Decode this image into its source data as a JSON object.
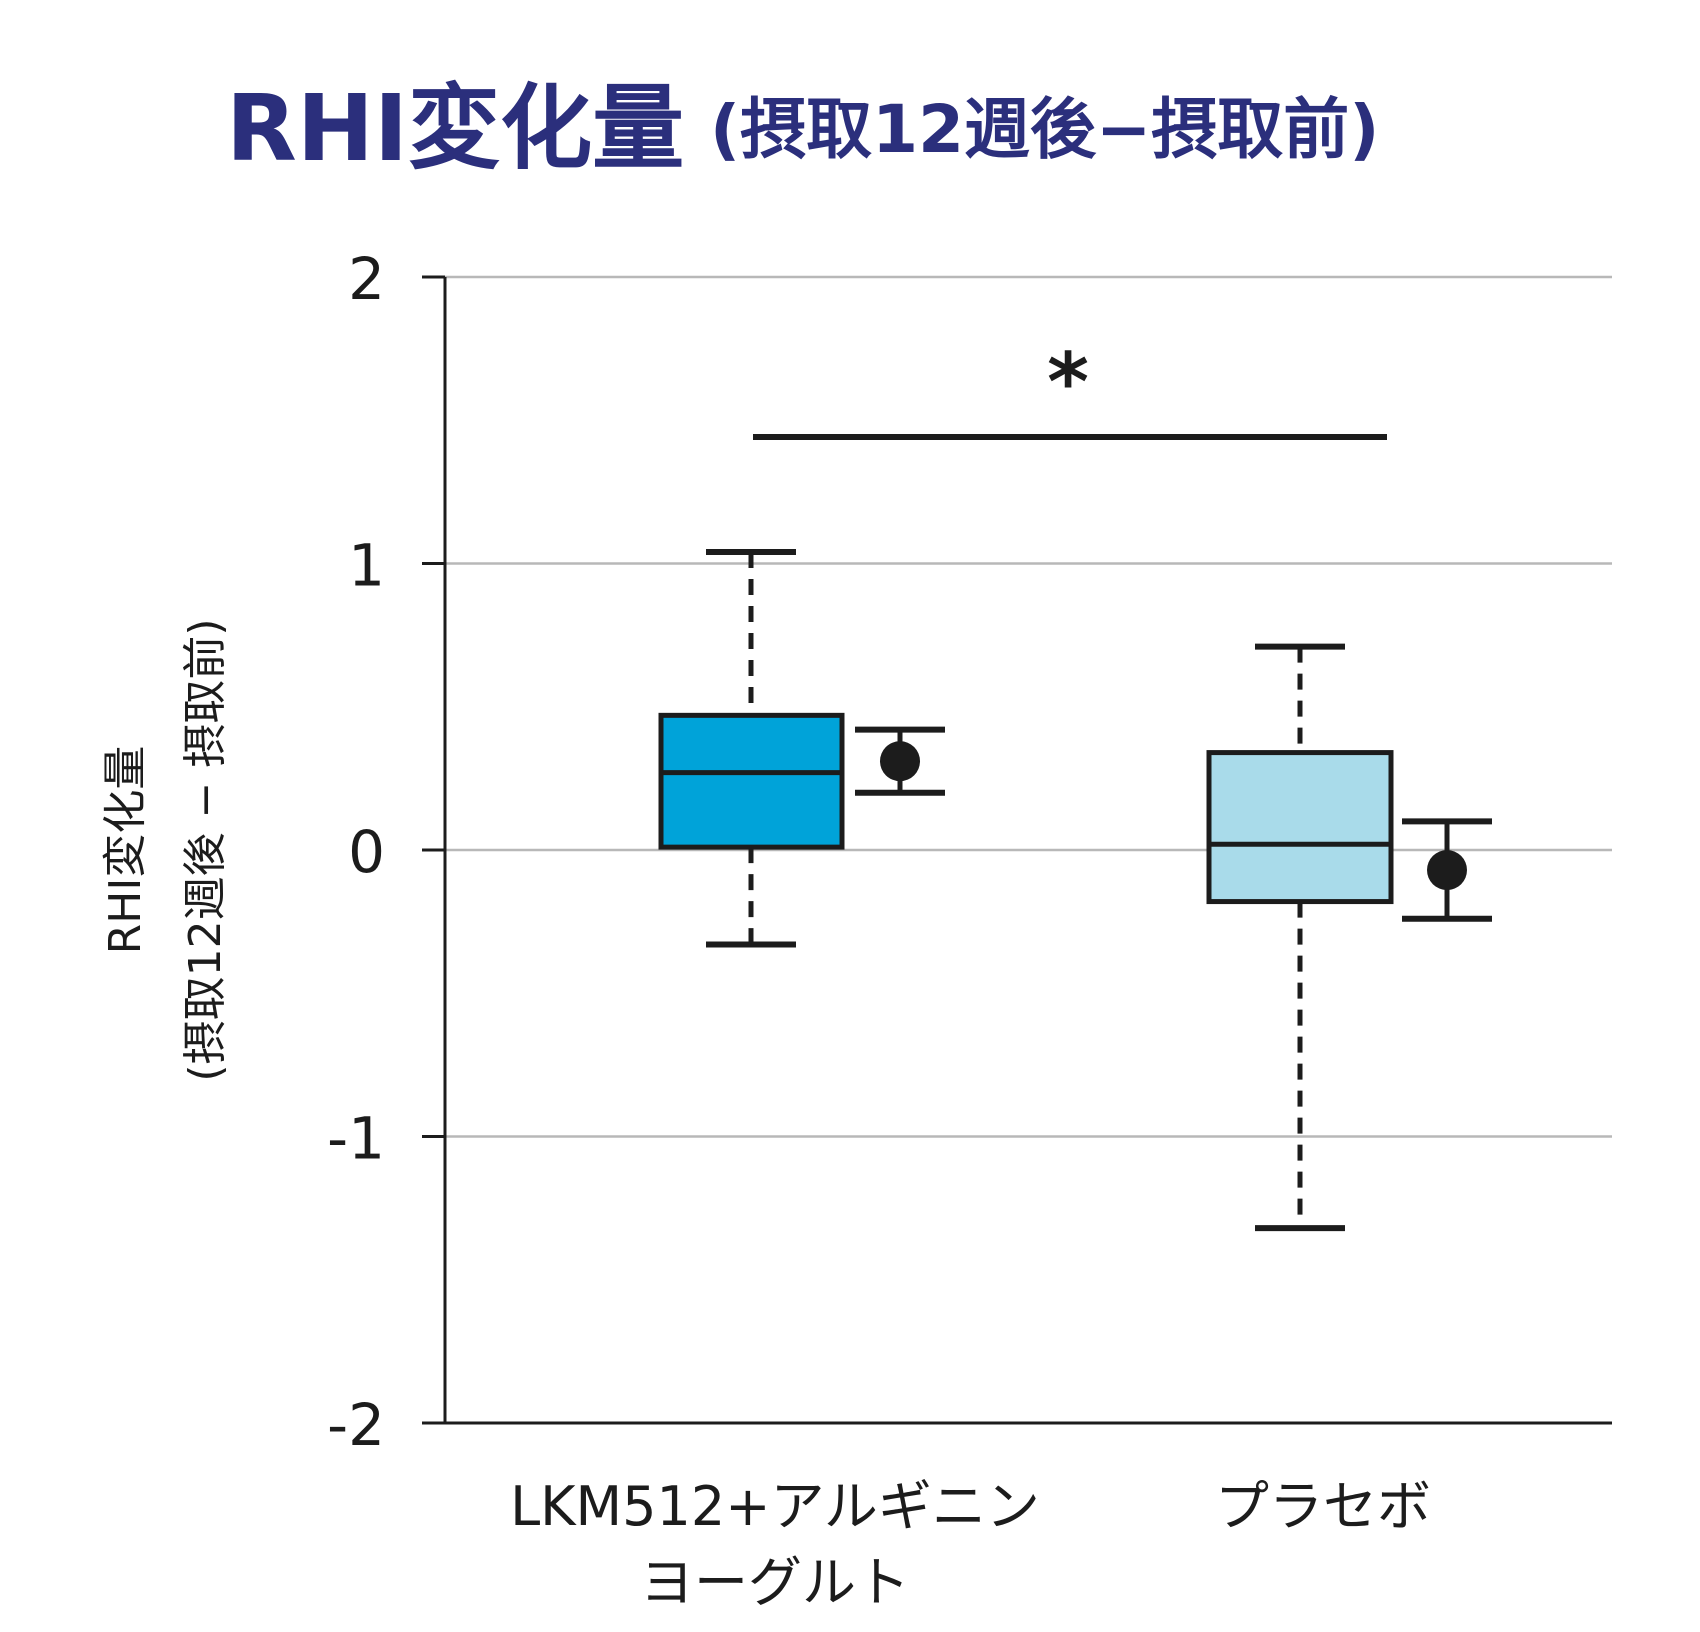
{
  "chart_data": {
    "type": "box",
    "title": "RHI変化量",
    "title_sub": "(摂取12週後−摂取前)",
    "ylabel_line1": "RHI変化量",
    "ylabel_line2": "(摂取12週後 − 摂取前)",
    "ylim": [
      -2,
      2
    ],
    "yticks": [
      2,
      1,
      0,
      -1,
      -2
    ],
    "ytick_labels": [
      "2",
      "1",
      "0",
      "-1",
      "-2"
    ],
    "grid": true,
    "significance_mark": "*",
    "groups": [
      {
        "label_lines": [
          "LKM512+アルギニン",
          "ヨーグルト"
        ],
        "color": "#00a3d9",
        "whisker_low": -0.33,
        "q1": 0.01,
        "median": 0.27,
        "q3": 0.47,
        "whisker_high": 1.04,
        "mean": 0.31,
        "mean_err_low": 0.2,
        "mean_err_high": 0.42
      },
      {
        "label_lines": [
          "プラセボ"
        ],
        "color": "#a9dbea",
        "whisker_low": -1.32,
        "q1": -0.18,
        "median": 0.02,
        "q3": 0.34,
        "whisker_high": 0.71,
        "mean": -0.07,
        "mean_err_low": -0.24,
        "mean_err_high": 0.1
      }
    ]
  }
}
